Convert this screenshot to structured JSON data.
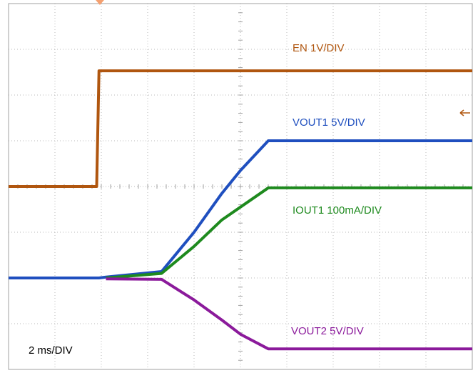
{
  "chart_data": {
    "type": "line",
    "annotation": "2 ms/DIV",
    "x": [
      0,
      1.9,
      1.95,
      2.1,
      3.3,
      4.0,
      4.6,
      5.0,
      5.6,
      10
    ],
    "xlim": [
      0,
      10
    ],
    "ylim": [
      0,
      8
    ],
    "xticks": [
      0,
      1,
      2,
      3,
      4,
      5,
      6,
      7,
      8,
      9,
      10
    ],
    "yticks": [
      0,
      1,
      2,
      3,
      4,
      5,
      6,
      7,
      8
    ],
    "grid": true,
    "series": [
      {
        "name": "EN 1V/DIV",
        "color": "#b0560f",
        "values": [
          4,
          4,
          6.53,
          6.53,
          6.53,
          6.53,
          6.53,
          6.53,
          6.53,
          6.53
        ]
      },
      {
        "name": "VOUT1 5V/DIV",
        "color": "#1f4fbf",
        "values": [
          2,
          2,
          2,
          2.02,
          2.14,
          3.0,
          3.85,
          4.35,
          5,
          5
        ]
      },
      {
        "name": "IOUT1 100mA/DIV",
        "color": "#1e8a1e",
        "values": [
          null,
          null,
          null,
          2.0,
          2.1,
          2.69,
          3.27,
          3.55,
          3.97,
          3.97
        ]
      },
      {
        "name": "VOUT2 5V/DIV",
        "color": "#8b1a9b",
        "values": [
          null,
          null,
          null,
          1.98,
          1.97,
          1.52,
          1.08,
          0.77,
          0.45,
          0.45
        ]
      }
    ]
  }
}
